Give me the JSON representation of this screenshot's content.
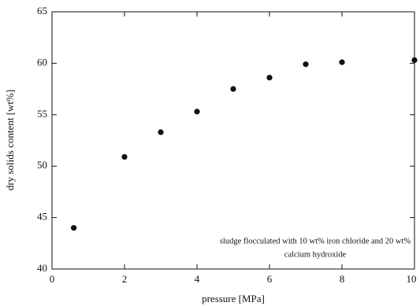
{
  "chart_data": {
    "type": "scatter",
    "xlabel": "pressure [MPa]",
    "ylabel": "dry solids content [wt%]",
    "annotation": [
      "sludge flocculated with 10 wt% iron chloride  and 20 wt%",
      "calcium hydroxide"
    ],
    "x": [
      0.6,
      2,
      3,
      4,
      5,
      6,
      7,
      8,
      10
    ],
    "values": [
      44,
      50.9,
      53.3,
      55.3,
      57.5,
      58.6,
      59.9,
      60.1,
      60.3
    ],
    "color": "#111111",
    "xlim": [
      0,
      10
    ],
    "xticks": [
      0,
      2,
      4,
      6,
      8,
      10
    ],
    "ylim": [
      40,
      65
    ],
    "yticks": [
      40,
      45,
      50,
      55,
      60,
      65
    ],
    "grid": false
  }
}
